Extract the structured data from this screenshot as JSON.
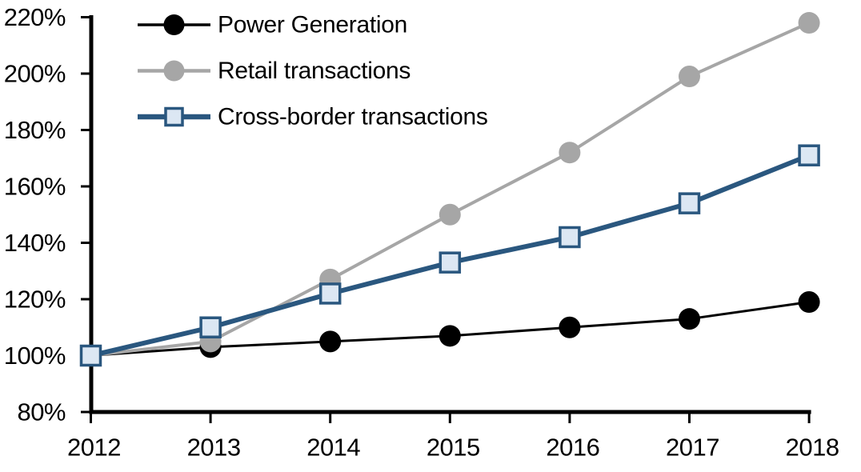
{
  "chart_data": {
    "type": "line",
    "title": "",
    "x_labels": [
      "2012",
      "2013",
      "2014",
      "2015",
      "2016",
      "2017",
      "2018"
    ],
    "x": [
      2012,
      2013,
      2014,
      2015,
      2016,
      2017,
      2018
    ],
    "series": [
      {
        "name": "Power Generation",
        "values": [
          100,
          103,
          105,
          107,
          110,
          113,
          119
        ],
        "color": "#000000",
        "marker": "circle",
        "marker_fill": "#000000",
        "line_width": 3
      },
      {
        "name": "Retail transactions",
        "values": [
          100,
          105,
          127,
          150,
          172,
          199,
          218
        ],
        "color": "#A6A6A6",
        "marker": "circle",
        "marker_fill": "#A6A6A6",
        "line_width": 4
      },
      {
        "name": "Cross-border transactions",
        "values": [
          100,
          110,
          122,
          133,
          142,
          154,
          171
        ],
        "color": "#2A577F",
        "marker": "square",
        "marker_fill": "#DCE7F3",
        "line_width": 6
      }
    ],
    "ylim": [
      80,
      220
    ],
    "ytick_step": 20,
    "y_tick_labels": [
      "80%",
      "100%",
      "120%",
      "140%",
      "160%",
      "180%",
      "200%",
      "220%"
    ],
    "y_tick_values": [
      80,
      100,
      120,
      140,
      160,
      180,
      200,
      220
    ],
    "yunit": "percent, indexed",
    "legend_position": "top-left",
    "grid": false,
    "axis_color": "#000000",
    "background_color": "#FFFFFF"
  }
}
